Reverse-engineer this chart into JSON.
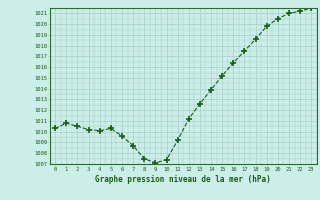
{
  "x": [
    0,
    1,
    2,
    3,
    4,
    5,
    6,
    7,
    8,
    9,
    10,
    11,
    12,
    13,
    14,
    15,
    16,
    17,
    18,
    19,
    20,
    21,
    22,
    23
  ],
  "y": [
    1010.3,
    1010.8,
    1010.5,
    1010.2,
    1010.1,
    1010.3,
    1009.6,
    1008.7,
    1007.5,
    1007.1,
    1007.4,
    1009.2,
    1011.2,
    1012.6,
    1013.9,
    1015.2,
    1016.4,
    1017.5,
    1018.6,
    1019.8,
    1020.5,
    1021.0,
    1021.2,
    1021.5
  ],
  "xlabel": "Graphe pression niveau de la mer (hPa)",
  "ylim": [
    1007,
    1021.5
  ],
  "yticks": [
    1007,
    1008,
    1009,
    1010,
    1011,
    1012,
    1013,
    1014,
    1015,
    1016,
    1017,
    1018,
    1019,
    1020,
    1021
  ],
  "xticks": [
    0,
    1,
    2,
    3,
    4,
    5,
    6,
    7,
    8,
    9,
    10,
    11,
    12,
    13,
    14,
    15,
    16,
    17,
    18,
    19,
    20,
    21,
    22,
    23
  ],
  "line_color": "#1a5c1a",
  "marker_color": "#1a5c1a",
  "bg_color": "#cceee8",
  "grid_color": "#a8ccc8",
  "tick_label_color": "#1a5c1a",
  "xlabel_color": "#1a5c1a"
}
